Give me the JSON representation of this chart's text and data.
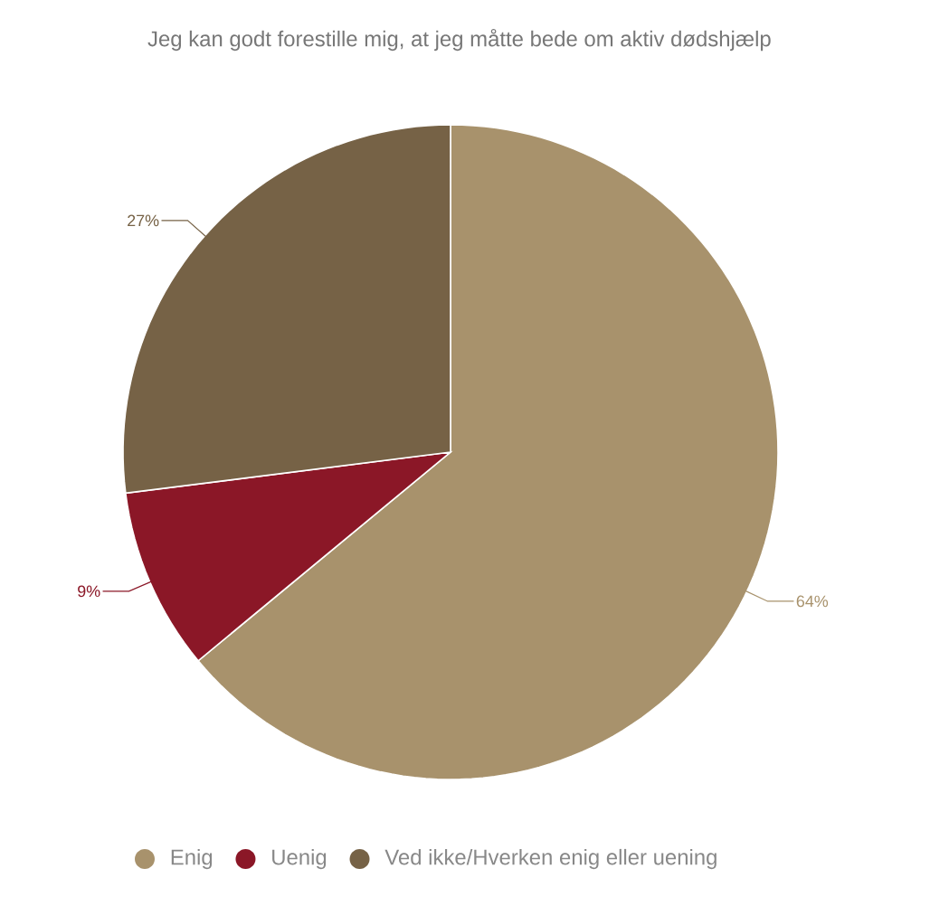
{
  "chart_data": {
    "type": "pie",
    "title": "Jeg kan godt forestille mig, at jeg måtte bede om aktiv dødshjælp",
    "categories": [
      "Enig",
      "Uenig",
      "Ved ikke/Hverken enig eller uening"
    ],
    "values": [
      64,
      9,
      27
    ],
    "colors": [
      "#a8926c",
      "#8b1727",
      "#766246"
    ],
    "value_labels": [
      "64%",
      "9%",
      "27%"
    ],
    "legend": "bottom"
  }
}
